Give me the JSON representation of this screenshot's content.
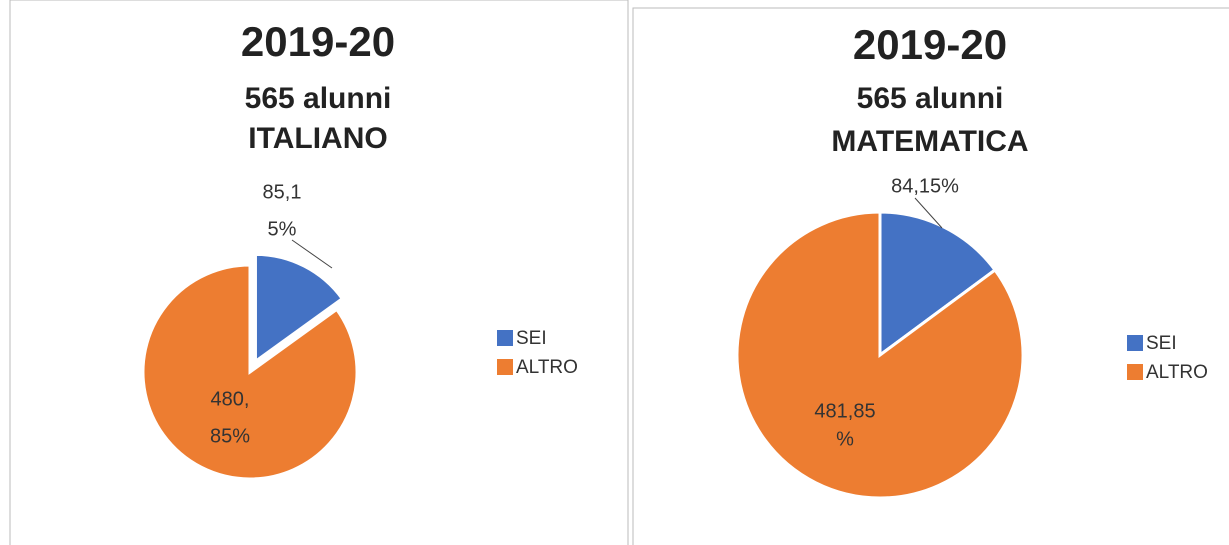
{
  "chart_data": [
    {
      "type": "pie",
      "title": "2019-20",
      "subtitle": [
        "565 alunni",
        "ITALIANO"
      ],
      "categories": [
        "SEI",
        "ALTRO"
      ],
      "values": [
        85,
        480
      ],
      "value_labels": [
        [
          "85,1",
          "5%"
        ],
        [
          "480,",
          "85%"
        ]
      ],
      "colors": [
        "#4472c4",
        "#ed7d31"
      ],
      "explode": [
        true,
        false
      ]
    },
    {
      "type": "pie",
      "title": "2019-20",
      "subtitle": [
        "565 alunni",
        "MATEMATICA"
      ],
      "categories": [
        "SEI",
        "ALTRO"
      ],
      "values": [
        84,
        481
      ],
      "value_labels": [
        [
          "84,15%"
        ],
        [
          "481,85",
          "%"
        ]
      ],
      "colors": [
        "#4472c4",
        "#ed7d31"
      ],
      "explode": [
        false,
        false
      ]
    }
  ]
}
